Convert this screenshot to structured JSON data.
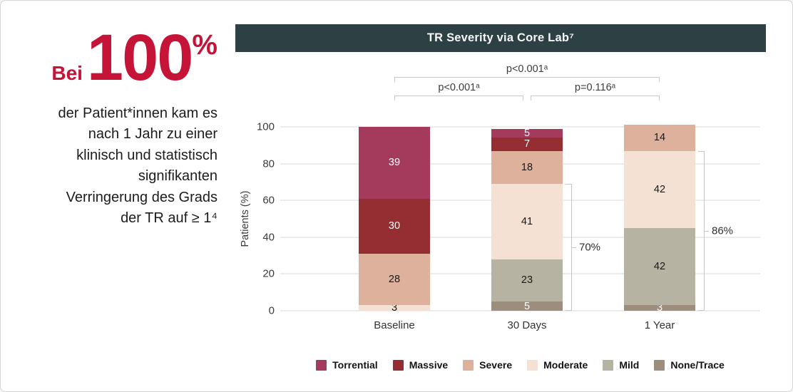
{
  "intro": {
    "prefix": "Bei",
    "big_number": "100",
    "percent_sign": "%",
    "lines": [
      "der Patient*innen kam es",
      "nach 1 Jahr zu einer",
      "klinisch und statistisch",
      "signifikanten",
      "Verringerung des Grads",
      "der TR auf ≥ 1⁴"
    ],
    "accent_color": "#C61438"
  },
  "chart_data": {
    "type": "bar",
    "stacked": true,
    "title": "TR Severity via Core Lab⁷",
    "title_bar_color": "#2D4145",
    "xlabel": "",
    "ylabel": "Patients (%)",
    "ylim": [
      0,
      100
    ],
    "yticks": [
      0,
      20,
      40,
      60,
      80,
      100
    ],
    "grid": true,
    "legend_position": "bottom",
    "categories": [
      "Baseline",
      "30 Days",
      "1 Year"
    ],
    "series": [
      {
        "name": "Torrential",
        "color": "#A43A5C",
        "label_color": "#ffffff",
        "values": [
          39,
          5,
          0
        ]
      },
      {
        "name": "Massive",
        "color": "#942E33",
        "label_color": "#ffffff",
        "values": [
          30,
          7,
          0
        ]
      },
      {
        "name": "Severe",
        "color": "#DDB19B",
        "label_color": "#1a1a1a",
        "values": [
          28,
          18,
          14
        ]
      },
      {
        "name": "Moderate",
        "color": "#F4E1D3",
        "label_color": "#1a1a1a",
        "values": [
          3,
          41,
          42
        ]
      },
      {
        "name": "Mild",
        "color": "#B7B3A3",
        "label_color": "#1a1a1a",
        "values": [
          0,
          23,
          42
        ]
      },
      {
        "name": "None/Trace",
        "color": "#9D8D7D",
        "label_color": "#ffffff",
        "values": [
          0,
          5,
          3
        ]
      }
    ],
    "pvalue_comparisons": [
      {
        "label": "p<0.001ᵃ",
        "from": 0,
        "to": 2,
        "row": "top"
      },
      {
        "label": "p<0.001ᵃ",
        "from": 0,
        "to": 1,
        "row": "bottom"
      },
      {
        "label": "p=0.116ᵃ",
        "from": 1,
        "to": 2,
        "row": "bottom"
      }
    ],
    "side_brackets": [
      {
        "category": "30 Days",
        "label": "70%",
        "covers_series": [
          "Moderate",
          "Mild",
          "None/Trace"
        ]
      },
      {
        "category": "1 Year",
        "label": "86%",
        "covers_series": [
          "Moderate",
          "Mild",
          "None/Trace"
        ]
      }
    ]
  }
}
